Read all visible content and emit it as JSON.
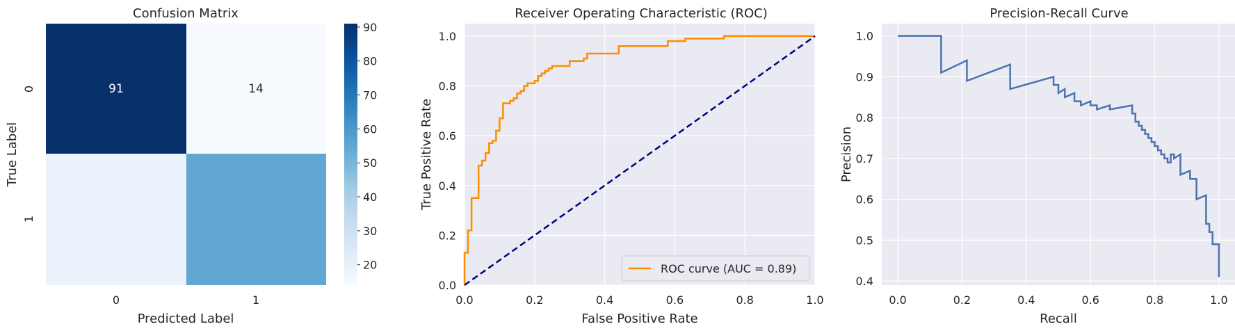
{
  "chart_data": [
    {
      "type": "heatmap",
      "title": "Confusion Matrix",
      "xlabel": "Predicted Label",
      "ylabel": "True Label",
      "x_categories": [
        "0",
        "1"
      ],
      "y_categories": [
        "0",
        "1"
      ],
      "matrix": [
        [
          91,
          14
        ],
        [
          18,
          56
        ]
      ],
      "annotations": [
        [
          "91",
          "14"
        ],
        [
          "",
          ""
        ]
      ],
      "colormap": "Blues",
      "colorbar": {
        "vmin": 14,
        "vmax": 91,
        "ticks": [
          "20",
          "30",
          "40",
          "50",
          "60",
          "70",
          "80",
          "90"
        ]
      }
    },
    {
      "type": "line",
      "title": "Receiver Operating Characteristic (ROC)",
      "xlabel": "False Positive Rate",
      "ylabel": "True Positive Rate",
      "xlim": [
        0.0,
        1.0
      ],
      "ylim": [
        0.0,
        1.05
      ],
      "xticks": [
        "0.0",
        "0.2",
        "0.4",
        "0.6",
        "0.8",
        "1.0"
      ],
      "yticks": [
        "0.0",
        "0.2",
        "0.4",
        "0.6",
        "0.8",
        "1.0"
      ],
      "grid": true,
      "legend_position": "lower-right",
      "series": [
        {
          "name": "ROC curve (AUC = 0.89)",
          "color": "#ff8c00",
          "style": "solid",
          "x": [
            0,
            0,
            0.01,
            0.01,
            0.02,
            0.02,
            0.03,
            0.03,
            0.04,
            0.04,
            0.05,
            0.05,
            0.06,
            0.06,
            0.07,
            0.07,
            0.08,
            0.08,
            0.09,
            0.09,
            0.1,
            0.1,
            0.11,
            0.11,
            0.13,
            0.13,
            0.14,
            0.14,
            0.15,
            0.15,
            0.16,
            0.16,
            0.17,
            0.17,
            0.18,
            0.18,
            0.2,
            0.2,
            0.21,
            0.21,
            0.22,
            0.22,
            0.23,
            0.23,
            0.24,
            0.24,
            0.25,
            0.25,
            0.3,
            0.3,
            0.34,
            0.34,
            0.35,
            0.35,
            0.44,
            0.44,
            0.58,
            0.58,
            0.63,
            0.63,
            0.74,
            0.74,
            1.0
          ],
          "y": [
            0,
            0.13,
            0.13,
            0.22,
            0.22,
            0.35,
            0.35,
            0.35,
            0.35,
            0.48,
            0.48,
            0.5,
            0.5,
            0.53,
            0.53,
            0.57,
            0.57,
            0.58,
            0.58,
            0.62,
            0.62,
            0.67,
            0.67,
            0.73,
            0.73,
            0.74,
            0.74,
            0.75,
            0.75,
            0.77,
            0.77,
            0.78,
            0.78,
            0.8,
            0.8,
            0.81,
            0.81,
            0.82,
            0.82,
            0.84,
            0.84,
            0.85,
            0.85,
            0.86,
            0.86,
            0.87,
            0.87,
            0.88,
            0.88,
            0.9,
            0.9,
            0.91,
            0.91,
            0.93,
            0.93,
            0.96,
            0.96,
            0.98,
            0.98,
            0.99,
            0.99,
            1.0,
            1.0
          ]
        },
        {
          "name": "",
          "color": "#000080",
          "style": "dashed",
          "x": [
            0,
            1
          ],
          "y": [
            0,
            1
          ]
        }
      ]
    },
    {
      "type": "line",
      "title": "Precision-Recall Curve",
      "xlabel": "Recall",
      "ylabel": "Precision",
      "xlim": [
        -0.05,
        1.05
      ],
      "ylim": [
        0.39,
        1.03
      ],
      "xticks": [
        "0.0",
        "0.2",
        "0.4",
        "0.6",
        "0.8",
        "1.0"
      ],
      "yticks": [
        "0.4",
        "0.5",
        "0.6",
        "0.7",
        "0.8",
        "0.9",
        "1.0"
      ],
      "grid": true,
      "series": [
        {
          "name": "",
          "color": "#4c72b0",
          "style": "solid",
          "x": [
            0,
            0.135,
            0.135,
            0.215,
            0.215,
            0.35,
            0.35,
            0.485,
            0.485,
            0.5,
            0.5,
            0.52,
            0.52,
            0.55,
            0.55,
            0.57,
            0.57,
            0.6,
            0.6,
            0.62,
            0.62,
            0.66,
            0.66,
            0.73,
            0.73,
            0.74,
            0.74,
            0.75,
            0.75,
            0.76,
            0.76,
            0.77,
            0.77,
            0.78,
            0.78,
            0.79,
            0.79,
            0.8,
            0.8,
            0.81,
            0.81,
            0.82,
            0.82,
            0.83,
            0.83,
            0.84,
            0.84,
            0.85,
            0.85,
            0.86,
            0.86,
            0.88,
            0.88,
            0.91,
            0.91,
            0.92,
            0.92,
            0.93,
            0.93,
            0.96,
            0.96,
            0.97,
            0.97,
            0.98,
            0.98,
            1.0,
            1.0
          ],
          "y": [
            1.0,
            1.0,
            0.91,
            0.94,
            0.89,
            0.93,
            0.87,
            0.9,
            0.88,
            0.88,
            0.86,
            0.87,
            0.85,
            0.86,
            0.84,
            0.84,
            0.83,
            0.84,
            0.83,
            0.83,
            0.82,
            0.83,
            0.82,
            0.83,
            0.81,
            0.81,
            0.79,
            0.79,
            0.78,
            0.78,
            0.77,
            0.77,
            0.76,
            0.76,
            0.75,
            0.75,
            0.74,
            0.74,
            0.73,
            0.73,
            0.72,
            0.72,
            0.71,
            0.71,
            0.7,
            0.7,
            0.69,
            0.69,
            0.71,
            0.71,
            0.7,
            0.71,
            0.66,
            0.67,
            0.65,
            0.65,
            0.65,
            0.65,
            0.6,
            0.61,
            0.54,
            0.54,
            0.52,
            0.52,
            0.49,
            0.49,
            0.41
          ]
        }
      ]
    }
  ]
}
